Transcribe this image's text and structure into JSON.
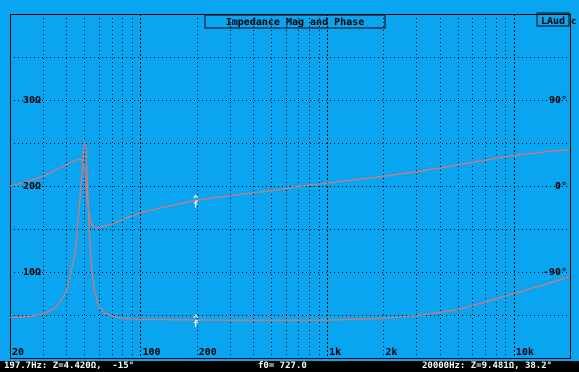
{
  "title": "Impedance Mag and Phase",
  "badge": "LAud",
  "badge_suffix": "c",
  "colors": {
    "background": "#0aa5f0",
    "grid": "#000000",
    "curve": "#d27878",
    "text": "#000000",
    "white": "#ffffff"
  },
  "status": {
    "left": "197.7Hz: Z=4.420Ω,  -15°",
    "center": "f0= 727.0",
    "right": "20000Hz: Z=9.481Ω, 38.2°"
  },
  "chart_data": {
    "type": "line",
    "title": "Impedance Mag and Phase",
    "x_scale": "log",
    "xlim": [
      20,
      20000
    ],
    "x_tick_labels": [
      {
        "value": 20,
        "label": "20"
      },
      {
        "value": 100,
        "label": "100"
      },
      {
        "value": 200,
        "label": "200"
      },
      {
        "value": 1000,
        "label": "1k"
      },
      {
        "value": 2000,
        "label": "2k"
      },
      {
        "value": 10000,
        "label": "10k"
      }
    ],
    "y_left": {
      "lim": [
        0,
        40
      ],
      "tick_labels": [
        {
          "value": 10,
          "label": "10Ω"
        },
        {
          "value": 20,
          "label": "20Ω"
        },
        {
          "value": 30,
          "label": "30Ω"
        }
      ]
    },
    "y_right": {
      "lim": [
        -180,
        180
      ],
      "tick_labels": [
        {
          "value": 90,
          "label": "90°"
        },
        {
          "value": 0,
          "label": "0°"
        },
        {
          "value": -90,
          "label": "-90°"
        }
      ]
    },
    "series": [
      {
        "axis": "left",
        "x": [
          20,
          25,
          30,
          35,
          40,
          45,
          48,
          50,
          51,
          52,
          53,
          55,
          57,
          60,
          65,
          70,
          80,
          100,
          150,
          197.7,
          300,
          500,
          727,
          1000,
          2000,
          3000,
          5000,
          7000,
          10000,
          15000,
          20000
        ],
        "y": [
          4.7,
          4.8,
          5.1,
          5.8,
          7.6,
          12.5,
          20,
          25,
          24.6,
          20,
          15,
          10,
          7.5,
          6.0,
          5.2,
          4.9,
          4.6,
          4.5,
          4.45,
          4.42,
          4.4,
          4.4,
          4.4,
          4.4,
          4.6,
          4.9,
          5.6,
          6.5,
          7.5,
          8.6,
          9.481
        ]
      },
      {
        "axis": "right",
        "x": [
          20,
          25,
          30,
          35,
          40,
          45,
          48,
          50,
          51,
          52,
          55,
          58,
          60,
          70,
          80,
          100,
          150,
          197.7,
          300,
          500,
          727,
          1000,
          2000,
          3000,
          5000,
          7000,
          10000,
          15000,
          20000
        ],
        "y": [
          0,
          5,
          10,
          17,
          22,
          27,
          28,
          20,
          5,
          -20,
          -42,
          -44,
          -43,
          -40,
          -35,
          -28,
          -20,
          -15,
          -10,
          -5,
          0,
          3,
          10,
          15,
          22,
          27,
          32,
          36,
          38.2
        ]
      }
    ],
    "cursor": {
      "x": 197.7,
      "label": "f"
    },
    "grid": true
  }
}
